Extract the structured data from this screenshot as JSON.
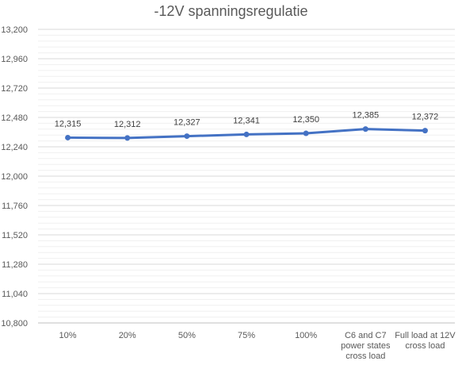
{
  "chart_data": {
    "type": "line",
    "title": "-12V spanningsregulatie",
    "xlabel": "",
    "ylabel": "",
    "ylim": [
      10.8,
      13.2
    ],
    "y_ticks": [
      "10,800",
      "11,040",
      "11,280",
      "11,520",
      "11,760",
      "12,000",
      "12,240",
      "12,480",
      "12,720",
      "12,960",
      "13,200"
    ],
    "categories": [
      [
        "10%"
      ],
      [
        "20%"
      ],
      [
        "50%"
      ],
      [
        "75%"
      ],
      [
        "100%"
      ],
      [
        "C6 and C7",
        "power states",
        "cross load"
      ],
      [
        "Full load at 12V",
        "cross load"
      ]
    ],
    "series": [
      {
        "values": [
          12.315,
          12.312,
          12.327,
          12.341,
          12.35,
          12.385,
          12.372
        ],
        "labels": [
          "12,315",
          "12,312",
          "12,327",
          "12,341",
          "12,350",
          "12,385",
          "12,372"
        ],
        "color": "#4472C4"
      }
    ],
    "grid": true,
    "legend": "none"
  }
}
